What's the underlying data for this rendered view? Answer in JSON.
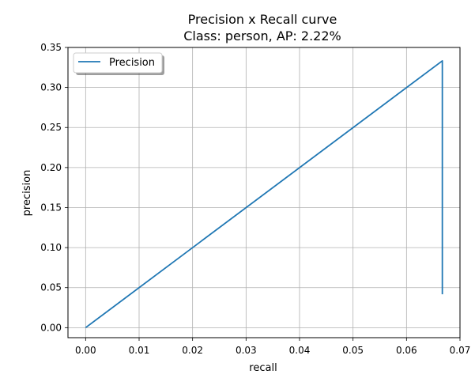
{
  "chart_data": {
    "type": "line",
    "title": "Precision x Recall curve",
    "subtitle": "Class: person, AP: 2.22%",
    "xlabel": "recall",
    "ylabel": "precision",
    "xlim": [
      -0.0033,
      0.07
    ],
    "ylim": [
      -0.0125,
      0.35
    ],
    "x_ticks": [
      "0.00",
      "0.01",
      "0.02",
      "0.03",
      "0.04",
      "0.05",
      "0.06",
      "0.07"
    ],
    "y_ticks": [
      "0.00",
      "0.05",
      "0.10",
      "0.15",
      "0.20",
      "0.25",
      "0.30",
      "0.35"
    ],
    "grid": true,
    "legend_position": "top-left",
    "series": [
      {
        "name": "Precision",
        "color": "#1f77b4",
        "x": [
          0.0,
          0.0667,
          0.0667
        ],
        "y": [
          0.0,
          0.3333,
          0.0417
        ]
      }
    ]
  }
}
